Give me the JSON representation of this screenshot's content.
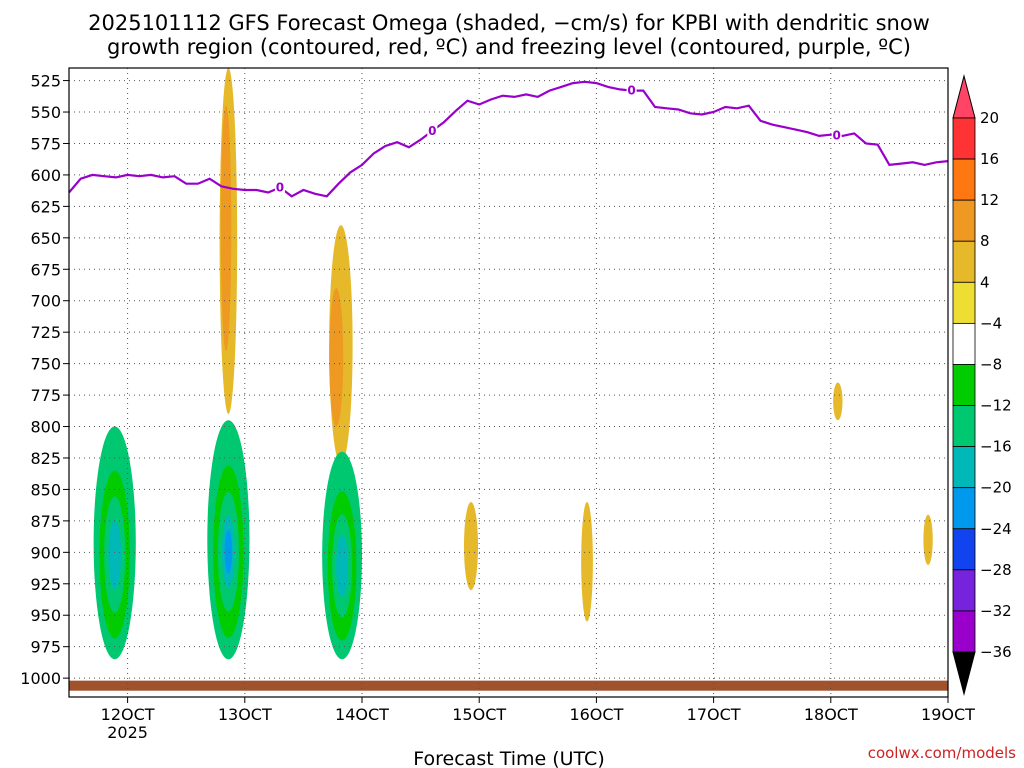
{
  "chart_data": {
    "type": "heatmap",
    "title_line1": "2025101112 GFS Forecast Omega (shaded, −cm/s) for KPBI with dendritic snow",
    "title_line2": "growth region (contoured, red, ºC) and freezing level (contoured, purple, ºC)",
    "xlabel": "Forecast Time (UTC)",
    "credit": "coolwx.com/models",
    "x_range": [
      115,
      190
    ],
    "y_range": [
      515,
      1015
    ],
    "x_ticks": [
      {
        "v": 120,
        "label": "12OCT",
        "sub": "2025"
      },
      {
        "v": 130,
        "label": "13OCT",
        "sub": ""
      },
      {
        "v": 140,
        "label": "14OCT",
        "sub": ""
      },
      {
        "v": 150,
        "label": "15OCT",
        "sub": ""
      },
      {
        "v": 160,
        "label": "16OCT",
        "sub": ""
      },
      {
        "v": 170,
        "label": "17OCT",
        "sub": ""
      },
      {
        "v": 180,
        "label": "18OCT",
        "sub": ""
      },
      {
        "v": 190,
        "label": "19OCT",
        "sub": ""
      }
    ],
    "y_ticks": [
      525,
      550,
      575,
      600,
      625,
      650,
      675,
      700,
      725,
      750,
      775,
      800,
      825,
      850,
      875,
      900,
      925,
      950,
      975,
      1000
    ],
    "colorbar": {
      "labels": [
        "20",
        "16",
        "12",
        "8",
        "4",
        "−4",
        "−8",
        "−12",
        "−16",
        "−20",
        "−24",
        "−28",
        "−32",
        "−36"
      ],
      "colors": [
        "#ff4466",
        "#ff3333",
        "#ff7711",
        "#ee9922",
        "#e6b92a",
        "#eedd33",
        "#ffffff",
        "#00cc00",
        "#00c870",
        "#00b8b8",
        "#0099ee",
        "#1144ee",
        "#7722dd",
        "#9900cc",
        "#aaaaaa",
        "#000000"
      ]
    },
    "freezing_level": {
      "x": [
        115,
        116,
        117,
        118,
        119,
        120,
        121,
        122,
        123,
        124,
        125,
        126,
        127,
        128,
        129,
        130,
        131,
        132,
        133,
        134,
        135,
        136,
        137,
        138,
        139,
        140,
        141,
        142,
        143,
        144,
        145,
        146,
        147,
        148,
        149,
        150,
        151,
        152,
        153,
        154,
        155,
        156,
        157,
        158,
        159,
        160,
        161,
        162,
        163,
        164,
        165,
        166,
        167,
        168,
        169,
        170,
        171,
        172,
        173,
        174,
        175,
        176,
        177,
        178,
        179,
        180,
        181,
        182,
        183,
        184,
        185,
        186,
        187,
        188,
        189,
        190
      ],
      "y": [
        614,
        603,
        600,
        601,
        602,
        600,
        601,
        600,
        602,
        601,
        607,
        607,
        603,
        609,
        611,
        612,
        612,
        614,
        610,
        617,
        612,
        615,
        617,
        607,
        598,
        592,
        583,
        577,
        574,
        578,
        572,
        565,
        558,
        549,
        541,
        544,
        540,
        537,
        538,
        536,
        538,
        533,
        530,
        527,
        526,
        527,
        530,
        532,
        533,
        533,
        546,
        547,
        548,
        551,
        552,
        550,
        546,
        547,
        545,
        557,
        560,
        562,
        564,
        566,
        569,
        568,
        569,
        567,
        575,
        576,
        592,
        591,
        590,
        592,
        590,
        589
      ],
      "contour_label": "0",
      "label_x": [
        133,
        146,
        163,
        180.5
      ]
    },
    "omega_regions": [
      {
        "name": "green-strip-1",
        "value": -6,
        "x": 118.5,
        "p1": 515,
        "p2": 660,
        "w": 0.6
      },
      {
        "name": "green-strip-2",
        "value": -6,
        "x": 115.2,
        "p1": 630,
        "p2": 735,
        "w": 0.3
      },
      {
        "name": "yellow-129",
        "value": 5,
        "x": 128.6,
        "p1": 515,
        "p2": 790,
        "w": 1.5
      },
      {
        "name": "orange-129",
        "value": 9,
        "x": 128.4,
        "p1": 545,
        "p2": 740,
        "w": 0.9
      },
      {
        "name": "green-130-top",
        "value": -6,
        "x": 130.0,
        "p1": 515,
        "p2": 600,
        "w": 0.6
      },
      {
        "name": "yellow-139",
        "value": 5,
        "x": 138.2,
        "p1": 640,
        "p2": 830,
        "w": 2.0
      },
      {
        "name": "orange-139",
        "value": 9,
        "x": 137.8,
        "p1": 690,
        "p2": 800,
        "w": 1.2
      },
      {
        "name": "green-139-strip",
        "value": -6,
        "x": 140.0,
        "p1": 590,
        "p2": 670,
        "w": 0.3
      },
      {
        "name": "low-120",
        "value": -12,
        "x": 118.9,
        "p1": 800,
        "p2": 985,
        "w": 3.6
      },
      {
        "name": "low-130",
        "value": -14,
        "x": 128.6,
        "p1": 795,
        "p2": 985,
        "w": 3.6
      },
      {
        "name": "low-139",
        "value": -12,
        "x": 138.3,
        "p1": 820,
        "p2": 985,
        "w": 3.4
      },
      {
        "name": "green-146",
        "value": -6,
        "x": 146.4,
        "p1": 860,
        "p2": 965,
        "w": 1.5
      },
      {
        "name": "yellow-148",
        "value": 5,
        "x": 149.3,
        "p1": 860,
        "p2": 930,
        "w": 1.2
      },
      {
        "name": "green-157",
        "value": -6,
        "x": 156.8,
        "p1": 875,
        "p2": 960,
        "w": 0.7
      },
      {
        "name": "yellow-159",
        "value": 5,
        "x": 159.2,
        "p1": 860,
        "p2": 955,
        "w": 1.0
      },
      {
        "name": "green-161",
        "value": -6,
        "x": 160.6,
        "p1": 795,
        "p2": 890,
        "w": 0.8
      },
      {
        "name": "green-166",
        "value": -6,
        "x": 166.3,
        "p1": 885,
        "p2": 970,
        "w": 1.2
      },
      {
        "name": "green-168",
        "value": -6,
        "x": 168.4,
        "p1": 835,
        "p2": 890,
        "w": 1.0
      },
      {
        "name": "green-172",
        "value": -6,
        "x": 172.5,
        "p1": 815,
        "p2": 970,
        "w": 1.2
      },
      {
        "name": "green-177",
        "value": -6,
        "x": 176.8,
        "p1": 885,
        "p2": 955,
        "w": 1.0
      },
      {
        "name": "green-184",
        "value": -6,
        "x": 184.2,
        "p1": 680,
        "p2": 905,
        "w": 1.6
      },
      {
        "name": "yellow-181",
        "value": 5,
        "x": 180.6,
        "p1": 765,
        "p2": 795,
        "w": 0.8
      },
      {
        "name": "yellow-188",
        "value": 5,
        "x": 188.3,
        "p1": 870,
        "p2": 910,
        "w": 0.8
      }
    ]
  }
}
